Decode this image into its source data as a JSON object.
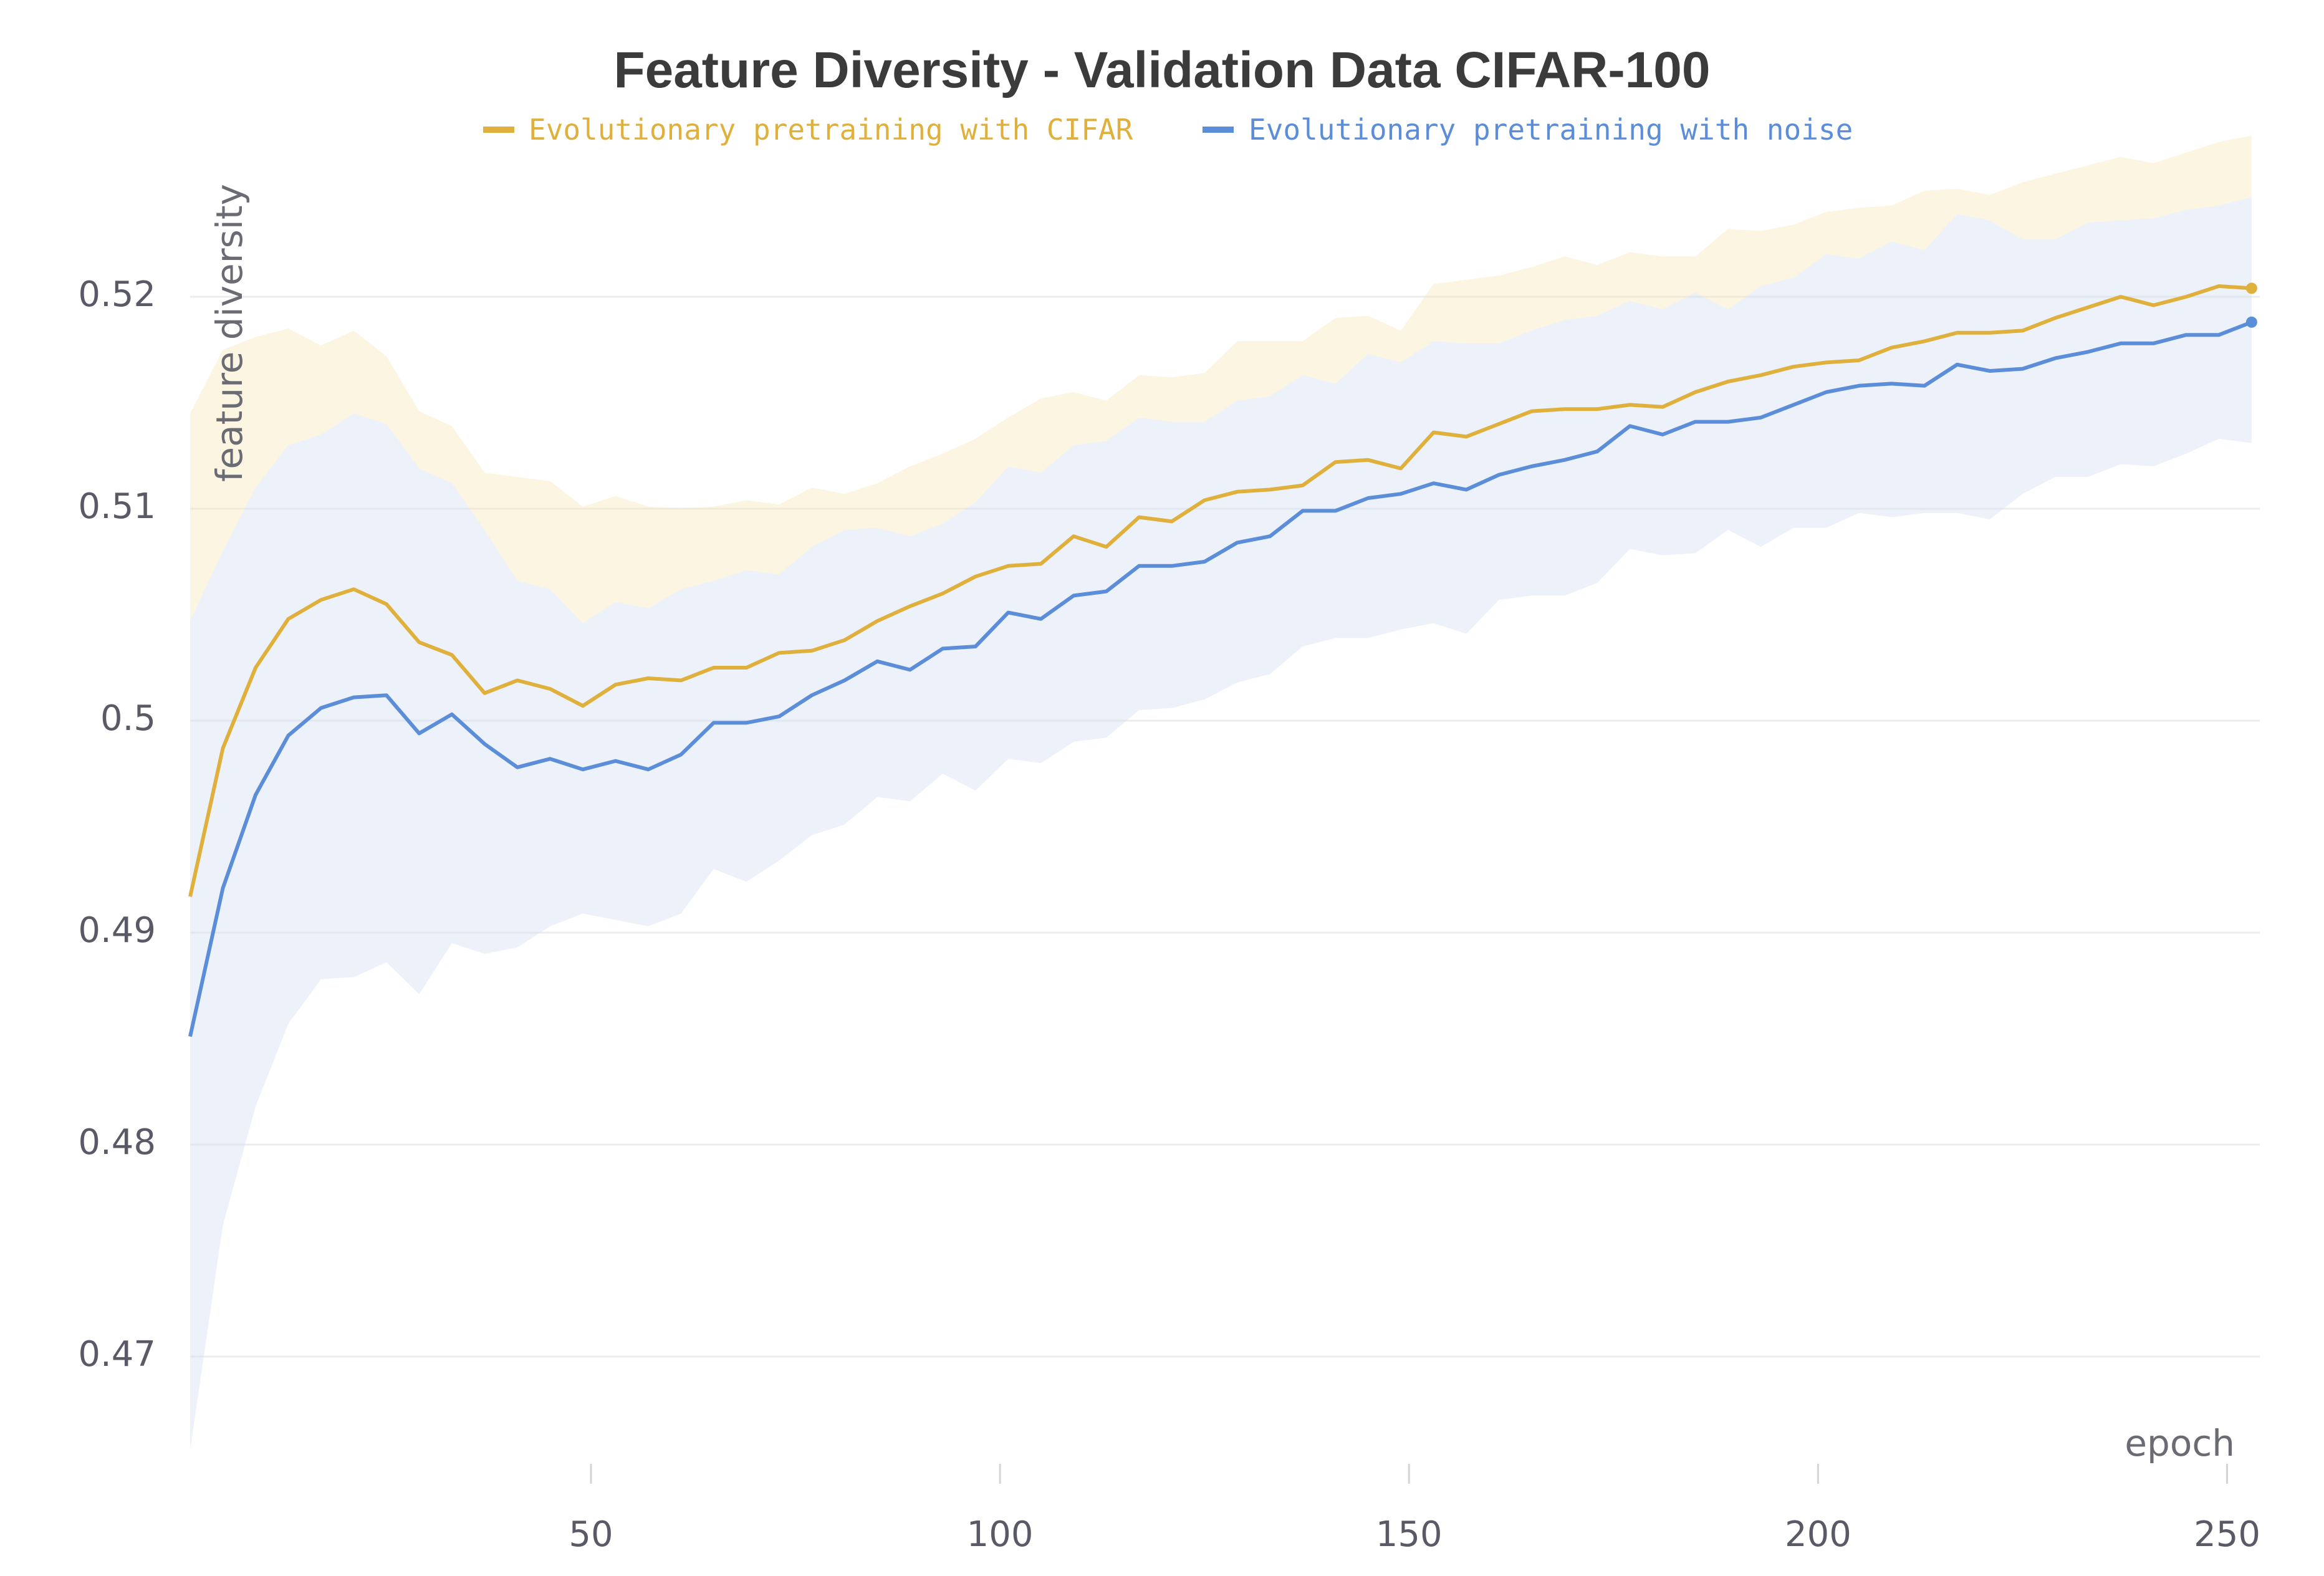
{
  "chart_data": {
    "type": "line",
    "title": "Feature Diversity - Validation Data CIFAR-100",
    "xlabel": "epoch",
    "ylabel": "feature diversity",
    "xlim": [
      1,
      254
    ],
    "ylim": [
      0.464,
      0.5265
    ],
    "x_ticks": [
      50,
      100,
      150,
      200,
      250
    ],
    "y_ticks": [
      0.47,
      0.48,
      0.49,
      0.5,
      0.51,
      0.52
    ],
    "y_tick_labels": [
      "0.47",
      "0.48",
      "0.49",
      "0.5",
      "0.51",
      "0.52"
    ],
    "grid": "horizontal",
    "legend_position": "top-center",
    "x": [
      1,
      5,
      9,
      13,
      17,
      21,
      25,
      29,
      33,
      37,
      41,
      45,
      49,
      53,
      57,
      61,
      65,
      69,
      73,
      77,
      81,
      85,
      89,
      93,
      97,
      101,
      105,
      109,
      113,
      117,
      121,
      125,
      129,
      133,
      137,
      141,
      145,
      149,
      153,
      157,
      161,
      165,
      169,
      173,
      177,
      181,
      185,
      189,
      193,
      197,
      201,
      205,
      209,
      213,
      217,
      221,
      225,
      229,
      233,
      237,
      241,
      245,
      249,
      253
    ],
    "series": [
      {
        "name": "Evolutionary pretraining with CIFAR",
        "color": "#e0b03c",
        "values": [
          0.4917,
          0.4987,
          0.5025,
          0.5048,
          0.5057,
          0.5062,
          0.5055,
          0.5037,
          0.5031,
          0.5013,
          0.5019,
          0.5015,
          0.5007,
          0.5017,
          0.502,
          0.5019,
          0.5025,
          0.5025,
          0.5032,
          0.5033,
          0.5038,
          0.5047,
          0.5054,
          0.506,
          0.5068,
          0.5073,
          0.5074,
          0.5087,
          0.5082,
          0.5096,
          0.5094,
          0.5104,
          0.5108,
          0.5109,
          0.5111,
          0.5122,
          0.5123,
          0.5119,
          0.5136,
          0.5134,
          0.514,
          0.5146,
          0.5147,
          0.5147,
          0.5149,
          0.5148,
          0.5155,
          0.516,
          0.5163,
          0.5167,
          0.5169,
          0.517,
          0.5176,
          0.5179,
          0.5183,
          0.5183,
          0.5184,
          0.519,
          0.5195,
          0.52,
          0.5196,
          0.52,
          0.5205,
          0.5204
        ],
        "upper": [
          0.5145,
          0.5175,
          0.5181,
          0.5185,
          0.5177,
          0.5184,
          0.5172,
          0.5146,
          0.5139,
          0.5117,
          0.5115,
          0.5113,
          0.5101,
          0.5106,
          0.5101,
          0.51,
          0.5101,
          0.5104,
          0.5102,
          0.511,
          0.5107,
          0.5112,
          0.512,
          0.5126,
          0.5133,
          0.5143,
          0.5152,
          0.5155,
          0.5151,
          0.5163,
          0.5162,
          0.5164,
          0.5179,
          0.5179,
          0.5179,
          0.519,
          0.5191,
          0.5184,
          0.5206,
          0.5208,
          0.521,
          0.5214,
          0.5219,
          0.5215,
          0.5221,
          0.5219,
          0.5219,
          0.5232,
          0.5231,
          0.5234,
          0.524,
          0.5242,
          0.5243,
          0.525,
          0.5251,
          0.5248,
          0.5254,
          0.5258,
          0.5262,
          0.5266,
          0.5263,
          0.5268,
          0.5273,
          0.5276
        ],
        "lower": [
          0.5047,
          0.508,
          0.511,
          0.513,
          0.5135,
          0.5145,
          0.514,
          0.5119,
          0.5112,
          0.509,
          0.5066,
          0.5062,
          0.5046,
          0.5056,
          0.5053,
          0.5062,
          0.5066,
          0.5071,
          0.5069,
          0.5082,
          0.509,
          0.5091,
          0.5087,
          0.5093,
          0.5103,
          0.512,
          0.5117,
          0.513,
          0.5132,
          0.5143,
          0.5141,
          0.5141,
          0.5151,
          0.5153,
          0.5163,
          0.5159,
          0.5173,
          0.5169,
          0.5179,
          0.5178,
          0.5178,
          0.5184,
          0.5189,
          0.5191,
          0.5198,
          0.5194,
          0.5202,
          0.5194,
          0.5205,
          0.5209,
          0.522,
          0.5218,
          0.5226,
          0.5222,
          0.5239,
          0.5236,
          0.5227,
          0.5227,
          0.5235,
          0.5236,
          0.5237,
          0.5241,
          0.5243,
          0.5247
        ]
      },
      {
        "name": "Evolutionary pretraining with noise",
        "color": "#5b8dd8",
        "values": [
          0.4851,
          0.4921,
          0.4965,
          0.4993,
          0.5006,
          0.5011,
          0.5012,
          0.4994,
          0.5003,
          0.4989,
          0.4978,
          0.4982,
          0.4977,
          0.4981,
          0.4977,
          0.4984,
          0.4999,
          0.4999,
          0.5002,
          0.5012,
          0.5019,
          0.5028,
          0.5024,
          0.5034,
          0.5035,
          0.5051,
          0.5048,
          0.5059,
          0.5061,
          0.5073,
          0.5073,
          0.5075,
          0.5084,
          0.5087,
          0.5099,
          0.5099,
          0.5105,
          0.5107,
          0.5112,
          0.5109,
          0.5116,
          0.512,
          0.5123,
          0.5127,
          0.5139,
          0.5135,
          0.5141,
          0.5141,
          0.5143,
          0.5149,
          0.5155,
          0.5158,
          0.5159,
          0.5158,
          0.5168,
          0.5165,
          0.5166,
          0.5171,
          0.5174,
          0.5178,
          0.5178,
          0.5182,
          0.5182,
          0.5188
        ],
        "upper": [
          0.5047,
          0.508,
          0.511,
          0.513,
          0.5135,
          0.5145,
          0.514,
          0.5119,
          0.5112,
          0.509,
          0.5066,
          0.5062,
          0.5046,
          0.5056,
          0.5053,
          0.5062,
          0.5066,
          0.5071,
          0.5069,
          0.5082,
          0.509,
          0.5091,
          0.5087,
          0.5093,
          0.5103,
          0.512,
          0.5117,
          0.513,
          0.5132,
          0.5143,
          0.5141,
          0.5141,
          0.5151,
          0.5153,
          0.5163,
          0.5159,
          0.5173,
          0.5169,
          0.5179,
          0.5178,
          0.5178,
          0.5184,
          0.5189,
          0.5191,
          0.5198,
          0.5194,
          0.5202,
          0.5194,
          0.5205,
          0.5209,
          0.522,
          0.5218,
          0.5226,
          0.5222,
          0.5239,
          0.5236,
          0.5227,
          0.5227,
          0.5235,
          0.5236,
          0.5237,
          0.5241,
          0.5243,
          0.5247
        ],
        "lower": [
          0.4656,
          0.4762,
          0.4818,
          0.4857,
          0.4878,
          0.4879,
          0.4886,
          0.4871,
          0.4895,
          0.489,
          0.4893,
          0.4903,
          0.4909,
          0.4906,
          0.4903,
          0.4909,
          0.493,
          0.4924,
          0.4934,
          0.4946,
          0.4951,
          0.4964,
          0.4962,
          0.4975,
          0.4967,
          0.4982,
          0.498,
          0.499,
          0.4992,
          0.5005,
          0.5006,
          0.501,
          0.5018,
          0.5022,
          0.5035,
          0.5039,
          0.5039,
          0.5043,
          0.5046,
          0.5041,
          0.5057,
          0.5059,
          0.5059,
          0.5065,
          0.5081,
          0.5078,
          0.5079,
          0.509,
          0.5082,
          0.5091,
          0.5091,
          0.5098,
          0.5096,
          0.5098,
          0.5098,
          0.5095,
          0.5107,
          0.5115,
          0.5115,
          0.5121,
          0.512,
          0.5126,
          0.5133,
          0.5131
        ]
      }
    ]
  }
}
